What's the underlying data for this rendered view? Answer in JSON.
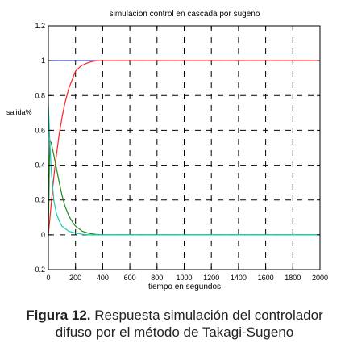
{
  "chart_data": {
    "type": "line",
    "title": "simulacion control en cascada por sugeno",
    "xlabel": "tiempo en segundos",
    "ylabel": "salida%",
    "xlim": [
      0,
      2000
    ],
    "ylim": [
      -0.2,
      1.2
    ],
    "xticks": [
      0,
      200,
      400,
      600,
      800,
      1000,
      1200,
      1400,
      1600,
      1800,
      2000
    ],
    "yticks": [
      -0.2,
      0,
      0.2,
      0.4,
      0.6,
      0.8,
      1,
      1.2
    ],
    "xtick_labels": [
      "0",
      "200",
      "400",
      "600",
      "800",
      "1000",
      "1200",
      "1400",
      "1600",
      "1800",
      "2000"
    ],
    "ytick_labels": [
      "-0.2",
      "0",
      "0.2",
      "0.4",
      "0.6",
      "0.8",
      "1",
      "1.2"
    ],
    "grid": true,
    "grid_style": "dashed",
    "series": [
      {
        "color": "#1a1aa0",
        "x": [
          0,
          2000
        ],
        "y": [
          1,
          1
        ]
      },
      {
        "color": "#ff2020",
        "x": [
          0,
          20,
          40,
          60,
          80,
          100,
          120,
          150,
          180,
          200,
          240,
          280,
          320,
          360,
          400,
          500,
          600,
          2000
        ],
        "y": [
          0,
          0.17,
          0.33,
          0.46,
          0.58,
          0.67,
          0.75,
          0.84,
          0.9,
          0.94,
          0.97,
          0.985,
          0.995,
          1,
          1,
          1,
          1,
          1
        ]
      },
      {
        "color": "#1f8a1f",
        "x": [
          0,
          10,
          20,
          40,
          60,
          80,
          100,
          120,
          150,
          180,
          200,
          250,
          300,
          350,
          400,
          500,
          2000
        ],
        "y": [
          0,
          0.54,
          0.53,
          0.46,
          0.38,
          0.3,
          0.23,
          0.17,
          0.11,
          0.07,
          0.05,
          0.02,
          0.008,
          0.002,
          0,
          0,
          0
        ]
      },
      {
        "color": "#16c8b8",
        "x": [
          0,
          10,
          20,
          40,
          60,
          80,
          100,
          150,
          200,
          250,
          300,
          400,
          2000
        ],
        "y": [
          0.75,
          0.55,
          0.38,
          0.2,
          0.12,
          0.08,
          0.05,
          0.02,
          0.01,
          0.003,
          0,
          0,
          0
        ]
      }
    ]
  },
  "caption": {
    "lead": "Figura 12.",
    "line1": "Respuesta simulación del controlador",
    "line2": "difuso por el método de Takagi-Sugeno"
  }
}
